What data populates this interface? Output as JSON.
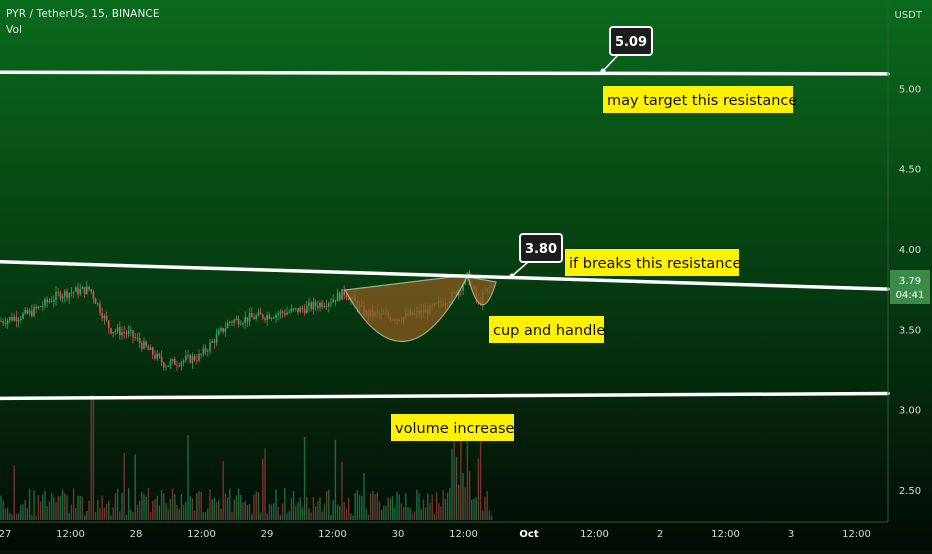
{
  "header": {
    "symbol": "PYR / TetherUS, 15, BINANCE",
    "indicator": "Vol"
  },
  "price_axis": {
    "unit": "USDT",
    "current_price": "3.79",
    "countdown": "04:41"
  },
  "colors": {
    "background_top": "#0a6a1c",
    "background_bottom": "#020a05",
    "up_candle": "#2fa66a",
    "down_candle": "#d9534f",
    "price_line": "#ffffff",
    "annotation_bg": "#fff200",
    "cup_fill": "#8b5a20",
    "price_badge": "#3a8a4a"
  },
  "chart_data": {
    "type": "candlestick",
    "y_axis": {
      "ticks": [
        "5.00",
        "4.50",
        "4.00",
        "3.50",
        "3.00",
        "2.50"
      ],
      "ylim": [
        2.3,
        5.55
      ]
    },
    "x_axis": {
      "ticks": [
        "27",
        "12:00",
        "28",
        "12:00",
        "29",
        "12:00",
        "30",
        "12:00",
        "Oct",
        "12:00",
        "2",
        "12:00",
        "3",
        "12:00"
      ]
    },
    "lines": [
      {
        "name": "target-resistance",
        "start": 5.1,
        "end": 5.09
      },
      {
        "name": "descending-resistance",
        "start": 3.92,
        "end": 3.75
      },
      {
        "name": "support",
        "start": 3.07,
        "end": 3.1
      }
    ],
    "price_labels": [
      {
        "name": "target-price-label",
        "value": "5.09"
      },
      {
        "name": "breakout-price-label",
        "value": "3.80"
      }
    ],
    "annotations": [
      {
        "name": "target-annotation",
        "text": "may target this resistance"
      },
      {
        "name": "breakout-annotation",
        "text": "if breaks this resistance"
      },
      {
        "name": "cup-annotation",
        "text": "cup and handle"
      },
      {
        "name": "volume-annotation",
        "text": "volume increase"
      }
    ]
  }
}
